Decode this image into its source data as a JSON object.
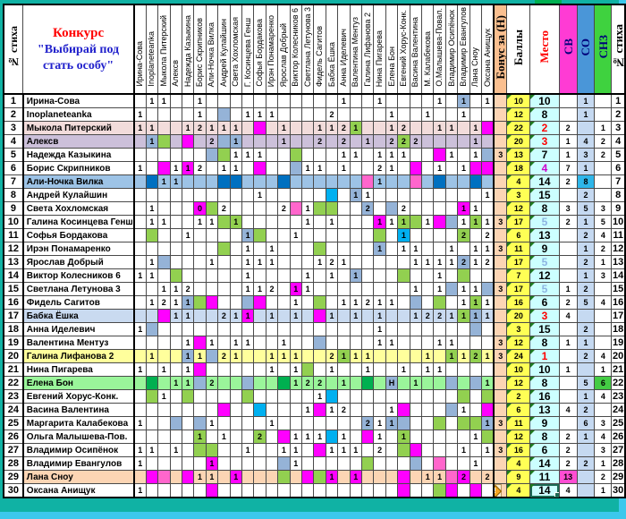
{
  "title": {
    "line1": "Конкурс",
    "line2": "\"Выбирай под",
    "line3": "стать особу\""
  },
  "header": {
    "row_axis_label": "№ стиха",
    "bonus_label": "Бонус за (Н)",
    "score_label": "Баллы",
    "place_label": "Место",
    "sv_label": "СВ",
    "so_label": "СО",
    "snz_label": "СНЗ",
    "num_label": "№ стиха",
    "voters": [
      "Ирина-Сова",
      "Inoplaneteanka",
      "Мыкола Питерский",
      "Алексв",
      "Надежда Казыкина",
      "Борис Скрипников",
      "Али-Ночка Вилка",
      "Андрей Кулайшин",
      "Света Хохломская",
      "Г. Косинцева Генш",
      "Софья Бордакова",
      "Ирэн Понамаренко",
      "Ярослав Добрый",
      "Виктор Колесников 6",
      "Светлана Летунова 3",
      "Фидель Сагитов",
      "Бабка Ёшка",
      "Анна Иделевич",
      "Валентина Ментуз",
      "Галина Лифанова 2",
      "Нина Пигарева",
      "Елена Бон",
      "Евгений Хорус-Конк.",
      "Васина Валентина",
      "М. Калабекова",
      "О.Малышева-Повал.",
      "Владимир Осипёнок",
      "Владимир Евангулов",
      "Лана Сноу",
      "Оксана Анищук"
    ]
  },
  "palette": {
    "B": "#95b3d7",
    "G": "#92d050",
    "M": "#ff00ff",
    "P": "#ff66cc",
    "D": "#0070c0",
    "C": "#00b0f0",
    "E": "#00b050"
  },
  "colors": {
    "frame_teal": "#10b2a4",
    "frame_cyan": "#3cc8ec",
    "notch_magenta": "#ff33cc",
    "bonus_col": "#fcd5b4",
    "bonus_hdr": "#fabf8f",
    "score_col": "#ffff55",
    "place_col": "#ccffff",
    "sv_hdr": "#ff3bd4",
    "so_hdr": "#4a96d8",
    "snz_hdr": "#3fd23f",
    "so_cell": "#c5d9f1",
    "so_cell_row7": "#2eb6ea",
    "title_red": "#ff0000",
    "title_blue": "#2222cc",
    "place_red": "#ff0000",
    "place_violet": "#cc00cc",
    "place_light_blue": "#8db4e2",
    "triangle_green": "#1e7a1e",
    "selection": "#1d6b54"
  },
  "row_backgrounds": {
    "3": "#f2dcdb",
    "4": "#ccc0da",
    "7": "#9dc3e6",
    "17": "#c9daf0",
    "20": "#ffff9c",
    "22": "#9af59a",
    "29": "#fcd5b4"
  },
  "rows": [
    {
      "num": 1,
      "name": "Ирина-Сова",
      "bonus": "",
      "score": "10",
      "place": "10",
      "place_style": "",
      "sv": "",
      "so": "1",
      "snz": "",
      "cells": {
        "2": "1",
        "3": "1",
        "6": "1",
        "18": "1",
        "21": "1",
        "26": "1",
        "28": "1|B",
        "30": "1"
      }
    },
    {
      "num": 2,
      "name": "Inoplaneteanka",
      "bonus": "",
      "score": "12",
      "place": "8",
      "place_style": "",
      "sv": "",
      "so": "1",
      "snz": "",
      "cells": {
        "1": "1",
        "6": "1",
        "8": "|B",
        "10": "1",
        "11": "1",
        "12": "1",
        "17": "2",
        "22": "1",
        "25": "1",
        "28": "1"
      }
    },
    {
      "num": 3,
      "name": "Мыкола Питерский",
      "bonus": "",
      "score": "22",
      "place": "2",
      "place_style": "red",
      "sv": "2",
      "so": "",
      "snz": "1",
      "cells": {
        "1": "1",
        "2": "1",
        "5": "1",
        "6": "2",
        "7": "1",
        "8": "1",
        "9": "1",
        "11": "|M",
        "13": "1",
        "16": "1",
        "17": "1",
        "18": "2",
        "19": "1|G",
        "22": "1",
        "23": "2",
        "26": "1",
        "27": "1",
        "29": "1",
        "30": "|M"
      }
    },
    {
      "num": 4,
      "name": "Алексв",
      "bonus": "",
      "score": "20",
      "place": "3",
      "place_style": "red",
      "sv": "1",
      "so": "4",
      "snz": "2",
      "cells": {
        "2": "1|B",
        "3": "|G",
        "5": "|M",
        "7": "2",
        "8": "|B",
        "9": "1|B",
        "13": "1",
        "16": "2",
        "18": "2",
        "20": "1",
        "22": "2",
        "23": "2|G",
        "24": "2",
        "29": "1"
      }
    },
    {
      "num": 5,
      "name": "Надежда Казыкина",
      "bonus": "3",
      "score": "13",
      "place": "7",
      "place_style": "",
      "sv": "1",
      "so": "3",
      "snz": "2",
      "cells": {
        "7": "|B",
        "8": "|G",
        "9": "1",
        "10": "1",
        "11": "1",
        "14": "|G",
        "18": "1",
        "19": "1",
        "21": "1",
        "22": "1",
        "23": "1",
        "26": "|M",
        "27": "1",
        "29": "1",
        "30": "|B"
      }
    },
    {
      "num": 6,
      "name": "Борис Скрипников",
      "bonus": "",
      "score": "18",
      "place": "4",
      "place_style": "violet",
      "sv": "7",
      "so": "1",
      "snz": "",
      "cells": {
        "1": "1",
        "3": "|M",
        "4": "1",
        "5": "1|M",
        "6": "2",
        "8": "1",
        "9": "1",
        "11": "|M",
        "14": "|B",
        "15": "1",
        "16": "1",
        "18": "1",
        "21": "2",
        "22": "1",
        "24": "|M",
        "26": "1",
        "28": "1",
        "29": "|M",
        "30": "|M"
      }
    },
    {
      "num": 7,
      "name": "Али-Ночка Вилка",
      "bonus": "",
      "score": "4",
      "place": "14",
      "place_style": "",
      "sv": "2",
      "so": "8",
      "snz": "",
      "cells": {
        "2": "|D",
        "3": "1",
        "4": "1",
        "8": "|D",
        "9": "|D",
        "13": "|D",
        "20": "|P",
        "21": "1",
        "24": "|P",
        "26": "|D",
        "29": "|D"
      }
    },
    {
      "num": 8,
      "name": "Андрей Кулайшин",
      "bonus": "",
      "score": "3",
      "place": "15",
      "place_style": "",
      "sv": "",
      "so": "2",
      "snz": "",
      "cells": {
        "11": "1",
        "17": "|C",
        "19": "1|B",
        "20": "1",
        "30": "1"
      }
    },
    {
      "num": 9,
      "name": "Света Хохломская",
      "bonus": "",
      "score": "12",
      "place": "8",
      "place_style": "",
      "sv": "3",
      "so": "5",
      "snz": "3",
      "cells": {
        "2": "1",
        "6": "0|M",
        "7": "|G",
        "8": "2",
        "13": "2",
        "14": "|P",
        "15": "1",
        "16": "|G",
        "17": "|G",
        "20": "2|B",
        "22": "|B",
        "23": "2",
        "28": "1|M",
        "29": "1"
      }
    },
    {
      "num": 10,
      "name": "Галина Косинцева Генш",
      "bonus": "3",
      "score": "17",
      "place": "5",
      "place_style": "blue",
      "sv": "2",
      "so": "1",
      "snz": "5",
      "cells": {
        "2": "1",
        "3": "1",
        "6": "1",
        "7": "1",
        "8": "|G",
        "9": "1|G",
        "15": "1",
        "17": "1",
        "21": "1|M",
        "22": "1",
        "23": "1|G",
        "24": "|G",
        "25": "1",
        "26": "|M",
        "27": "|B",
        "28": "1",
        "29": "1|G",
        "30": "1"
      }
    },
    {
      "num": 11,
      "name": "Софья Бордакова",
      "bonus": "",
      "score": "6",
      "place": "13",
      "place_style": "",
      "sv": "",
      "so": "2",
      "snz": "4",
      "cells": {
        "2": "|G",
        "5": "1",
        "10": "1|B",
        "11": "|G",
        "14": "1",
        "21": "|G",
        "23": "1|C",
        "28": "2|G",
        "30": "2"
      }
    },
    {
      "num": 12,
      "name": "Ирэн Понамаренко",
      "bonus": "3",
      "score": "11",
      "place": "9",
      "place_style": "",
      "sv": "",
      "so": "1",
      "snz": "2",
      "cells": {
        "8": "|G",
        "10": "1",
        "12": "1",
        "16": "|G",
        "21": "1|B",
        "23": "1",
        "24": "1",
        "27": "1",
        "29": "1",
        "30": "1"
      }
    },
    {
      "num": 13,
      "name": "Ярослав Добрый",
      "bonus": "",
      "score": "17",
      "place": "5",
      "place_style": "blue",
      "sv": "",
      "so": "2",
      "snz": "1",
      "cells": {
        "2": "1",
        "3": "|B",
        "7": "1",
        "10": "1",
        "11": "1",
        "12": "1",
        "16": "1",
        "17": "2",
        "18": "1",
        "24": "1",
        "25": "1",
        "26": "1",
        "27": "1",
        "28": "2|B",
        "29": "1",
        "30": "2"
      }
    },
    {
      "num": 14,
      "name": "Виктор Колесников 6",
      "bonus": "",
      "score": "7",
      "place": "12",
      "place_style": "",
      "sv": "",
      "so": "1",
      "snz": "3",
      "cells": {
        "1": "1",
        "2": "1",
        "4": "|G",
        "10": "1",
        "15": "1",
        "17": "1",
        "19": "1|B",
        "23": "|G",
        "26": "1",
        "28": "|G"
      }
    },
    {
      "num": 15,
      "name": "Светлана Летунова 3",
      "bonus": "3",
      "score": "17",
      "place": "5",
      "place_style": "blue",
      "sv": "1",
      "so": "2",
      "snz": "",
      "cells": {
        "3": "1",
        "4": "1",
        "5": "2",
        "10": "1",
        "11": "1",
        "12": "2",
        "14": "1|M",
        "15": "1",
        "24": "1",
        "26": "1",
        "27": "|B",
        "28": "1",
        "29": "1",
        "30": "|B"
      }
    },
    {
      "num": 16,
      "name": "Фидель Сагитов",
      "bonus": "",
      "score": "16",
      "place": "6",
      "place_style": "",
      "sv": "2",
      "so": "5",
      "snz": "4",
      "cells": {
        "2": "1",
        "3": "2",
        "4": "1",
        "5": "1|B",
        "6": "|G",
        "7": "|M",
        "10": "|B",
        "11": "|M",
        "14": "1",
        "16": "|G",
        "18": "1",
        "19": "1",
        "20": "2",
        "21": "1",
        "22": "1",
        "24": "|B",
        "26": "|G",
        "28": "1",
        "29": "1|G",
        "30": "1"
      }
    },
    {
      "num": 17,
      "name": "Бабка Ёшка",
      "bonus": "",
      "score": "20",
      "place": "3",
      "place_style": "red",
      "sv": "4",
      "so": "",
      "snz": "",
      "cells": {
        "3": "|M",
        "4": "1",
        "5": "1",
        "8": "2",
        "9": "1",
        "10": "1|M",
        "12": "1",
        "14": "1",
        "16": "|M",
        "17": "1",
        "19": "1",
        "21": "1",
        "24": "1",
        "25": "2",
        "26": "2",
        "27": "1",
        "28": "1|G",
        "29": "1|B",
        "30": "1"
      }
    },
    {
      "num": 18,
      "name": "Анна Иделевич",
      "bonus": "",
      "score": "3",
      "place": "15",
      "place_style": "",
      "sv": "",
      "so": "2",
      "snz": "",
      "cells": {
        "1": "1",
        "2": "|B",
        "21": "1",
        "29": "|B"
      }
    },
    {
      "num": 19,
      "name": "Валентина Ментуз",
      "bonus": "3",
      "score": "12",
      "place": "8",
      "place_style": "",
      "sv": "1",
      "so": "1",
      "snz": "",
      "cells": {
        "5": "1",
        "6": "|M",
        "7": "1",
        "9": "1",
        "10": "1",
        "13": "1",
        "16": "|B",
        "21": "1",
        "22": "1",
        "26": "1",
        "27": "1"
      }
    },
    {
      "num": 20,
      "name": "Галина Лифанова 2",
      "bonus": "3",
      "score": "24",
      "place": "1",
      "place_style": "red",
      "sv": "",
      "so": "2",
      "snz": "4",
      "cells": {
        "2": "1",
        "5": "1|B",
        "6": "1",
        "7": "|B",
        "8": "2",
        "9": "1",
        "12": "1",
        "13": "1",
        "14": "1",
        "17": "2",
        "18": "1|G",
        "19": "1",
        "20": "1",
        "25": "1",
        "27": "1|G",
        "28": "1",
        "29": "2|G",
        "30": "1"
      }
    },
    {
      "num": 21,
      "name": "Нина Пигарева",
      "bonus": "",
      "score": "10",
      "place": "10",
      "place_style": "",
      "sv": "1",
      "so": "",
      "snz": "1",
      "cells": {
        "1": "1",
        "3": "1",
        "5": "1",
        "6": "|M",
        "12": "1",
        "14": "1",
        "15": "|G",
        "17": "1",
        "20": "1",
        "23": "1",
        "25": "1",
        "26": "1"
      }
    },
    {
      "num": 22,
      "name": "Елена Бон",
      "bonus": "",
      "score": "12",
      "place": "8",
      "place_style": "",
      "sv": "",
      "so": "5",
      "snz": "6",
      "snz_bg": "#44cc44",
      "cells": {
        "2": "|E",
        "4": "1",
        "5": "1",
        "6": "|B",
        "7": "2",
        "10": "|B",
        "13": "|E",
        "14": "1",
        "15": "2",
        "16": "2",
        "18": "1",
        "20": "|E",
        "22": "Н|B",
        "24": "1",
        "27": "|B",
        "29": "|B",
        "30": "1"
      }
    },
    {
      "num": 23,
      "name": "Евгений Хорус-Конк.",
      "bonus": "",
      "score": "2",
      "place": "16",
      "place_style": "",
      "sv": "",
      "so": "1",
      "snz": "4",
      "cells": {
        "2": "|G",
        "3": "1",
        "5": "|G",
        "10": "|G",
        "16": "1",
        "17": "|C",
        "28": "|G",
        "30": "|G"
      }
    },
    {
      "num": 24,
      "name": "Васина Валентина",
      "bonus": "",
      "score": "6",
      "place": "13",
      "place_style": "",
      "sv": "4",
      "so": "2",
      "snz": "",
      "cells": {
        "8": "|M",
        "11": "|C",
        "15": "1",
        "16": "|M",
        "17": "1",
        "18": "2",
        "22": "1",
        "23": "|M",
        "27": "|B",
        "28": "1",
        "30": "|M"
      }
    },
    {
      "num": 25,
      "name": "Маргарита Калабекова",
      "bonus": "3",
      "score": "11",
      "place": "9",
      "place_style": "",
      "sv": "",
      "so": "6",
      "snz": "3",
      "cells": {
        "1": "1",
        "4": "|B",
        "6": "|B",
        "7": "1",
        "12": "1",
        "20": "2|B",
        "21": "1",
        "22": "1|B",
        "23": "|B",
        "26": "|G",
        "28": "|G",
        "29": "|G",
        "30": "1|B"
      }
    },
    {
      "num": 26,
      "name": "Ольга Малышева-Пов.",
      "bonus": "",
      "score": "12",
      "place": "8",
      "place_style": "",
      "sv": "2",
      "so": "1",
      "snz": "4",
      "cells": {
        "6": "1|G",
        "8": "1",
        "11": "2|G",
        "13": "|M",
        "14": "1",
        "15": "1",
        "16": "1",
        "17": "|C",
        "18": "1",
        "20": "|M",
        "21": "1",
        "23": "1|G",
        "29": "1",
        "30": "|G"
      }
    },
    {
      "num": 27,
      "name": "Владимир Осипёнок",
      "bonus": "3",
      "score": "16",
      "place": "6",
      "place_style": "",
      "sv": "2",
      "so": "",
      "snz": "3",
      "cells": {
        "1": "1",
        "2": "1",
        "4": "1",
        "6": "|G",
        "7": "|G",
        "10": "1",
        "13": "1",
        "14": "1",
        "16": "|M",
        "17": "1",
        "18": "1",
        "19": "1",
        "21": "2",
        "23": "|G",
        "24": "|M",
        "28": "1",
        "30": "1"
      }
    },
    {
      "num": 28,
      "name": "Владимир Евангулов",
      "bonus": "",
      "score": "4",
      "place": "14",
      "place_style": "",
      "sv": "2",
      "so": "2",
      "snz": "1",
      "cells": {
        "1": "1",
        "7": "1|M",
        "13": "|B",
        "14": "1",
        "20": "|G",
        "24": "|B",
        "26": "|P",
        "29": "1"
      }
    },
    {
      "num": 29,
      "name": "Лана Сноу",
      "bonus": "",
      "score": "9",
      "place": "11",
      "place_style": "",
      "sv": "13",
      "sv_bg": "#ff4dd2",
      "so": "",
      "snz": "2",
      "cells": {
        "2": "|M",
        "3": "|P",
        "5": "|M",
        "6": "1",
        "7": "1",
        "9": "1|M",
        "13": "|G",
        "15": "|M",
        "16": "|G",
        "17": "1|M",
        "19": "1|M",
        "23": "|M",
        "25": "1",
        "26": "1",
        "27": "|P",
        "28": "2|M",
        "30": "2"
      }
    },
    {
      "num": 30,
      "name": "Оксана Анищук",
      "bonus": "",
      "score": "4",
      "place": "14",
      "place_style": "",
      "sv": "4",
      "so": "",
      "snz": "1",
      "selected": true,
      "warn": true,
      "cells": {
        "1": "1",
        "7": "|M",
        "23": "|M",
        "26": "|G",
        "27": "|M",
        "29": "|M"
      }
    }
  ]
}
